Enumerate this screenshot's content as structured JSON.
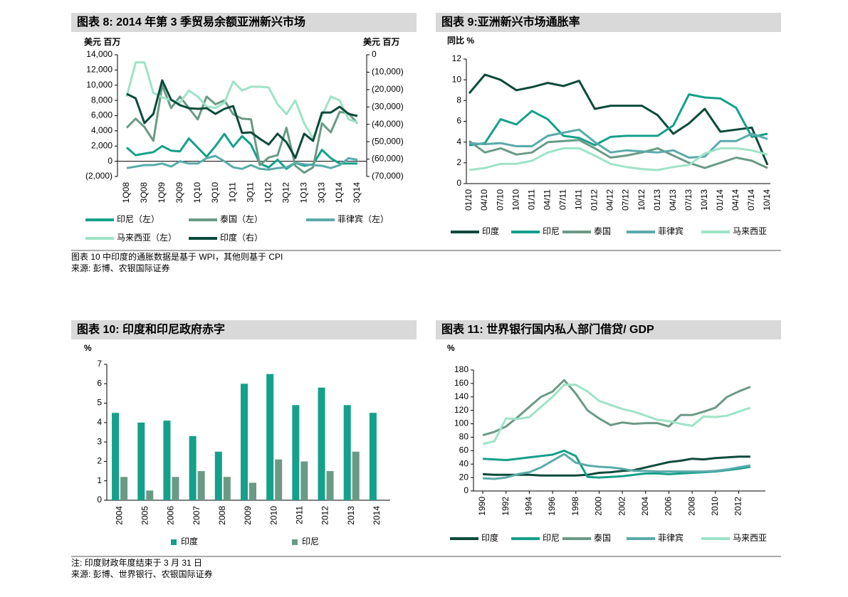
{
  "chart_data": [
    {
      "type": "line",
      "title": "图表 8: 2014 年第 3 季贸易余额亚洲新兴市场",
      "y_label": "美元 百万",
      "y2_label": "美元 百万",
      "categories": [
        "1Q08",
        null,
        "3Q08",
        null,
        "1Q09",
        null,
        "3Q09",
        null,
        "1Q10",
        null,
        "3Q10",
        null,
        "1Q11",
        null,
        "3Q11",
        null,
        "1Q12",
        null,
        "3Q12",
        null,
        "1Q13",
        null,
        "3Q13",
        null,
        "1Q14",
        null,
        "3Q14"
      ],
      "ylim": [
        -2000,
        14000
      ],
      "yticks": [
        {
          "value": 14000,
          "label": "14,000"
        },
        {
          "value": 12000,
          "label": "12,000"
        },
        {
          "value": 10000,
          "label": "10,000"
        },
        {
          "value": 8000,
          "label": "8,000"
        },
        {
          "value": 6000,
          "label": "6,000"
        },
        {
          "value": 4000,
          "label": "4,000"
        },
        {
          "value": 2000,
          "label": "2,000"
        },
        0,
        {
          "value": -2000,
          "label": "(2,000)"
        }
      ],
      "y2lim": [
        -70000,
        0
      ],
      "y2ticks": [
        0,
        {
          "value": -10000,
          "label": "(10,000)"
        },
        {
          "value": -20000,
          "label": "(20,000)"
        },
        {
          "value": -30000,
          "label": "(30,000)"
        },
        {
          "value": -40000,
          "label": "(40,000)"
        },
        {
          "value": -50000,
          "label": "(50,000)"
        },
        {
          "value": -60000,
          "label": "(60,000)"
        },
        {
          "value": -70000,
          "label": "(70,000)"
        }
      ],
      "series": [
        {
          "name": "印尼（左）",
          "color": "#14a08a",
          "values": [
            1800,
            800,
            1000,
            1200,
            2000,
            1400,
            1300,
            3000,
            1800,
            600,
            2000,
            3600,
            1900,
            3300,
            2200,
            -300,
            -800,
            200,
            -1000,
            -200,
            -600,
            -400,
            1500,
            400,
            -300,
            -300,
            -300
          ]
        },
        {
          "name": "泰国（左）",
          "color": "#6a9a85",
          "values": [
            4400,
            5600,
            4500,
            2700,
            10000,
            7000,
            8500,
            7000,
            5500,
            8500,
            7500,
            8000,
            6200,
            5600,
            5500,
            -500,
            500,
            800,
            4400,
            -600,
            -1500,
            -800,
            5000,
            3800,
            6500,
            6300,
            5000
          ]
        },
        {
          "name": "菲律宾（左）",
          "color": "#5aaaaa",
          "values": [
            -900,
            -700,
            -500,
            -500,
            -300,
            -700,
            0,
            -300,
            -300,
            400,
            700,
            0,
            -800,
            -1000,
            -500,
            -1000,
            -1100,
            -900,
            -800,
            -200,
            -400,
            -500,
            -600,
            -900,
            -500,
            400,
            200
          ]
        },
        {
          "name": "马来西亚（左）",
          "color": "#9ee3c6",
          "values": [
            8500,
            13000,
            13000,
            9000,
            8400,
            8000,
            7700,
            9300,
            8500,
            7200,
            7000,
            7700,
            10500,
            9300,
            9800,
            9800,
            9700,
            7500,
            6200,
            8000,
            5000,
            3000,
            6000,
            8500,
            8000,
            5500,
            5100
          ]
        },
        {
          "name": "印度（右）",
          "color": "#0b4a3b",
          "axis": "y2",
          "values": [
            -22500,
            -25000,
            -39300,
            -34000,
            -14700,
            -25800,
            -29000,
            -30700,
            -31100,
            -30700,
            -34000,
            -31100,
            -29500,
            -45000,
            -44600,
            -48300,
            -51600,
            -45400,
            -50300,
            -59300,
            -45400,
            -49500,
            -33200,
            -33200,
            -29900,
            -34000,
            -35200
          ]
        }
      ],
      "footnotes": [
        "图表 10 中印度的通胀数据是基于 WPI，其他则基于 CPI",
        "来源: 彭博、农银国际证券"
      ]
    },
    {
      "type": "line",
      "title": "图表 9:亚洲新兴市场通胀率",
      "y_label": "同比 %",
      "categories": [
        "01/10",
        "04/10",
        "07/10",
        "10/10",
        "01/11",
        "04/11",
        "07/11",
        "10/11",
        "01/12",
        "04/12",
        "07/12",
        "10/12",
        "01/13",
        "04/13",
        "07/13",
        "10/13",
        "01/14",
        "04/14",
        "07/14",
        "10/14"
      ],
      "ylim": [
        0,
        12
      ],
      "yticks": [
        0,
        2,
        4,
        6,
        8,
        10,
        12
      ],
      "series": [
        {
          "name": "印度",
          "color": "#0b4a3b",
          "values": [
            8.7,
            10.5,
            10.0,
            9.0,
            9.3,
            9.7,
            9.4,
            9.9,
            7.2,
            7.5,
            7.5,
            7.5,
            6.6,
            4.8,
            5.8,
            7.2,
            5.0,
            5.2,
            5.4,
            1.8
          ]
        },
        {
          "name": "印尼",
          "color": "#14a08a",
          "values": [
            3.7,
            3.9,
            6.2,
            5.7,
            7.0,
            6.2,
            4.6,
            4.4,
            3.7,
            4.5,
            4.6,
            4.6,
            4.6,
            5.6,
            8.6,
            8.3,
            8.2,
            7.3,
            4.5,
            4.8
          ]
        },
        {
          "name": "泰国",
          "color": "#6a9a85",
          "values": [
            4.1,
            3.0,
            3.4,
            2.8,
            3.0,
            4.0,
            4.1,
            4.2,
            3.4,
            2.5,
            2.7,
            3.0,
            3.4,
            2.7,
            2.0,
            1.5,
            2.0,
            2.5,
            2.2,
            1.5
          ]
        },
        {
          "name": "菲律宾",
          "color": "#5aaaaa",
          "values": [
            3.9,
            3.8,
            3.9,
            3.6,
            3.6,
            4.6,
            4.9,
            5.2,
            4.0,
            3.0,
            3.2,
            3.1,
            3.0,
            3.2,
            2.5,
            2.6,
            4.1,
            4.1,
            4.8,
            4.3
          ]
        },
        {
          "name": "马来西亚",
          "color": "#9ee3c6",
          "values": [
            1.3,
            1.5,
            1.9,
            1.9,
            2.2,
            3.0,
            3.4,
            3.4,
            2.7,
            1.9,
            1.6,
            1.4,
            1.3,
            1.6,
            1.8,
            2.9,
            3.4,
            3.4,
            3.2,
            2.8
          ]
        }
      ]
    },
    {
      "type": "bar",
      "title": "图表 10: 印度和印尼政府赤字",
      "y_label": "%",
      "categories": [
        "2004",
        "2005",
        "2006",
        "2007",
        "2008",
        "2009",
        "2010",
        "2011",
        "2012",
        "2013",
        "2014"
      ],
      "ylim": [
        0,
        7
      ],
      "yticks": [
        0,
        1,
        2,
        3,
        4,
        5,
        6,
        7
      ],
      "series": [
        {
          "name": "印度",
          "color": "#14a08a",
          "values": [
            4.5,
            4.0,
            4.1,
            3.3,
            2.5,
            6.0,
            6.5,
            4.9,
            5.8,
            4.9,
            4.5
          ]
        },
        {
          "name": "印尼",
          "color": "#6a9a85",
          "values": [
            1.2,
            0.5,
            1.2,
            1.5,
            1.2,
            0.9,
            2.1,
            2.0,
            1.5,
            2.5,
            null
          ]
        }
      ],
      "footnotes": [
        "注: 印度财政年度结束于 3 月 31 日",
        "来源: 彭博、世界银行、农银国际证券"
      ]
    },
    {
      "type": "line",
      "title": "图表 11: 世界银行国内私人部门借贷/ GDP",
      "y_label": "%",
      "x": [
        1990,
        1991,
        1992,
        1993,
        1994,
        1995,
        1996,
        1997,
        1998,
        1999,
        2000,
        2001,
        2002,
        2003,
        2004,
        2005,
        2006,
        2007,
        2008,
        2009,
        2010,
        2011,
        2012,
        2013
      ],
      "xlim": [
        1989.2,
        2014.3
      ],
      "xticks": [
        1990,
        1992,
        1994,
        1996,
        1998,
        2000,
        2002,
        2004,
        2006,
        2008,
        2010,
        2012
      ],
      "ylim": [
        0,
        180
      ],
      "yticks": [
        0,
        20,
        40,
        60,
        80,
        100,
        120,
        140,
        160,
        180
      ],
      "series": [
        {
          "name": "印度",
          "color": "#0b4a3b",
          "values": [
            25,
            24,
            24,
            24,
            24,
            23,
            23,
            23,
            23,
            24,
            27,
            28,
            30,
            31,
            35,
            39,
            43,
            45,
            48,
            47,
            49,
            50,
            51,
            51
          ]
        },
        {
          "name": "印尼",
          "color": "#14a08a",
          "values": [
            48,
            47,
            46,
            48,
            50,
            52,
            54,
            60,
            52,
            21,
            20,
            21,
            22,
            24,
            26,
            26,
            25,
            26,
            27,
            28,
            29,
            31,
            33,
            36
          ]
        },
        {
          "name": "泰国",
          "color": "#6a9a85",
          "values": [
            83,
            88,
            96,
            110,
            125,
            140,
            148,
            165,
            145,
            120,
            108,
            98,
            102,
            100,
            101,
            101,
            96,
            113,
            113,
            118,
            124,
            140,
            148,
            155
          ]
        },
        {
          "name": "菲律宾",
          "color": "#5aaaaa",
          "values": [
            19,
            18,
            20,
            25,
            28,
            35,
            45,
            55,
            42,
            38,
            36,
            35,
            33,
            30,
            30,
            29,
            29,
            29,
            29,
            29,
            30,
            32,
            35,
            38
          ]
        },
        {
          "name": "马来西亚",
          "color": "#9ee3c6",
          "values": [
            70,
            74,
            108,
            107,
            110,
            125,
            140,
            158,
            158,
            148,
            134,
            128,
            122,
            118,
            112,
            106,
            104,
            100,
            97,
            111,
            110,
            112,
            118,
            124
          ]
        }
      ]
    }
  ]
}
